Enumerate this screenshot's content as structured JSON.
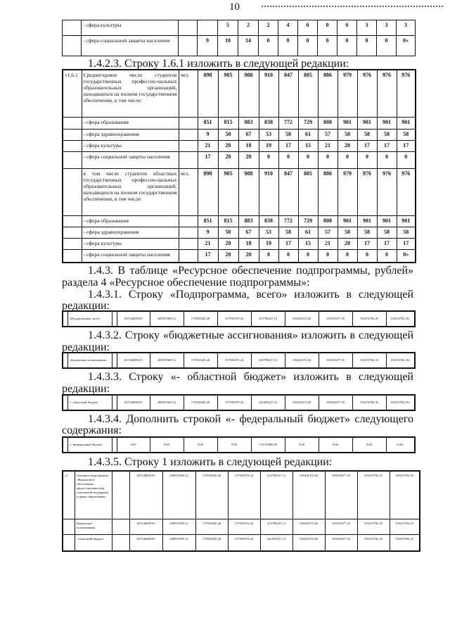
{
  "page_number": "10",
  "top_table": {
    "rows": [
      {
        "num": "",
        "label": "- сфера культуры",
        "unit": "",
        "values": [
          "",
          "5",
          "2",
          "2",
          "4",
          "6",
          "0",
          "6",
          "3",
          "3",
          "3"
        ]
      },
      {
        "num": "",
        "label": "- сфера социальной защиты населения",
        "unit": "",
        "values": [
          "9",
          "10",
          "14",
          "0",
          "0",
          "0",
          "0",
          "0",
          "0",
          "0",
          "0»"
        ]
      }
    ]
  },
  "para_1423": "1.4.2.3. Строку 1.6.1 изложить в следующей редакции:",
  "table_161": {
    "rows": [
      {
        "num": "«1.6.1",
        "label": "Среднегодовое число студентов государственных профессио-нальных образовательных организаций, находящихся на полном государственном обеспечении, в том числе:",
        "unit": "чел.",
        "values": [
          "898",
          "905",
          "988",
          "910",
          "847",
          "805",
          "886",
          "979",
          "976",
          "976",
          "976"
        ]
      },
      {
        "num": "",
        "label": "- сфера образования",
        "unit": "",
        "values": [
          "851",
          "815",
          "883",
          "838",
          "772",
          "729",
          "808",
          "901",
          "901",
          "901",
          "901"
        ]
      },
      {
        "num": "",
        "label": "- сфера здравоохранения",
        "unit": "",
        "values": [
          "9",
          "50",
          "67",
          "53",
          "58",
          "61",
          "57",
          "58",
          "58",
          "58",
          "58"
        ]
      },
      {
        "num": "",
        "label": "- сфера культуры",
        "unit": "",
        "values": [
          "21",
          "20",
          "18",
          "19",
          "17",
          "15",
          "21",
          "20",
          "17",
          "17",
          "17"
        ]
      },
      {
        "num": "",
        "label": "- сфера социальной защиты населения",
        "unit": "",
        "values": [
          "17",
          "20",
          "20",
          "0",
          "0",
          "0",
          "0",
          "0",
          "0",
          "0",
          "0"
        ]
      },
      {
        "num": "",
        "label": "в том числе студентов областных государственных профессио-нальных образовательных организаций, находящихся на полном государственном обеспечении, в том числе:",
        "unit": "чел.",
        "values": [
          "898",
          "905",
          "988",
          "910",
          "847",
          "805",
          "886",
          "979",
          "976",
          "976",
          "976"
        ]
      },
      {
        "num": "",
        "label": "- сфера образования",
        "unit": "",
        "values": [
          "851",
          "815",
          "883",
          "838",
          "772",
          "729",
          "808",
          "901",
          "901",
          "901",
          "901"
        ]
      },
      {
        "num": "",
        "label": "- сфера здравоохранения",
        "unit": "",
        "values": [
          "9",
          "50",
          "67",
          "53",
          "58",
          "61",
          "57",
          "58",
          "58",
          "58",
          "58"
        ]
      },
      {
        "num": "",
        "label": "- сфера культуры",
        "unit": "",
        "values": [
          "21",
          "20",
          "18",
          "19",
          "17",
          "15",
          "21",
          "20",
          "17",
          "17",
          "17"
        ]
      },
      {
        "num": "",
        "label": "- сфера социальной защиты населения",
        "unit": "",
        "values": [
          "17",
          "20",
          "20",
          "0",
          "0",
          "0",
          "0",
          "0",
          "0",
          "0",
          "0»"
        ]
      }
    ]
  },
  "para_143_line1": "1.4.3. В таблице «Ресурсное обеспечение подпрограммы, рублей»",
  "para_143_line2": "раздела 4 «Ресурсное обеспечение подпрограммы»:",
  "para_1431_line1": "1.4.3.1. Строку «Подпрограмма, всего» изложить в следующей",
  "para_1431_line2": "редакции:",
  "table_1431": {
    "label": "«Подпрограмма, всего",
    "values": [
      "267246008,05",
      "200947609,12",
      "179539445,28",
      "157930579,24",
      "413798227,13",
      "194454372,60",
      "193918477,35",
      "193474782,35",
      "193474782,35»"
    ]
  },
  "para_1432_line1": "1.4.3.2. Строку «бюджетные ассигнования» изложить в следующей",
  "para_1432_line2": "редакции:",
  "table_1432": {
    "label": "«бюджетные ассигнования",
    "values": [
      "267246008,05",
      "200947609,12",
      "179539445,28",
      "157930579,24",
      "413798227,13",
      "194454372,60",
      "193918477,35",
      "193474782,35",
      "193474782,35»"
    ]
  },
  "para_1433_line1": "1.4.3.3. Строку «- областной бюджет» изложить в следующей",
  "para_1433_line2": "редакции:",
  "table_1433": {
    "label": "«- областной бюджет",
    "values": [
      "267246008,05",
      "200947609,12",
      "179539445,28",
      "157930579,24",
      "241659227,13",
      "194454372,60",
      "193918477,35",
      "193474782,35",
      "193474782,35»"
    ]
  },
  "para_1434_line1": "1.4.3.4. Дополнить строкой «- федеральный бюджет» следующего",
  "para_1434_line2": "содержания:",
  "table_1434": {
    "label": "«- федеральный бюджет",
    "values": [
      "0,00",
      "0,00",
      "0,00",
      "0,00",
      "172139000,00",
      "0,00",
      "0,00",
      "0,00",
      "0,00»"
    ]
  },
  "para_1435": "1.4.3.5. Строку 1 изложить в следующей редакции:",
  "table_1435": {
    "rows": [
      {
        "num": "«1",
        "label": "Основное мероприятие «Финансовое обеспечение предоставления мер социальной поддержки в сфере образования»",
        "values": [
          "267246008,05",
          "200947609,12",
          "179539445,28",
          "157930579,24",
          "413798227,13",
          "194454372,60",
          "193918477,35",
          "193474782,35",
          "193474782,35"
        ]
      },
      {
        "num": "",
        "label": "бюджетные ассигнования",
        "values": [
          "267246008,05",
          "200947609,12",
          "179539445,28",
          "157930579,24",
          "413798227,13",
          "194454372,60",
          "193918477,35",
          "193474782,35",
          "193474782,35"
        ]
      },
      {
        "num": "",
        "label": "- областной бюджет",
        "values": [
          "267246008,05",
          "200947609,12",
          "179539445,28",
          "157930579,24",
          "241659227,13",
          "194454372,60",
          "193918477,35",
          "193474782,35",
          "193474782,35"
        ]
      }
    ]
  }
}
